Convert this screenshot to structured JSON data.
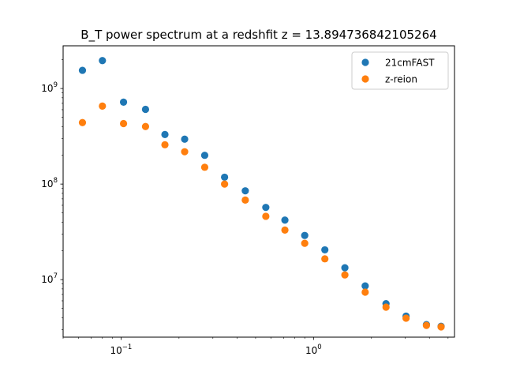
{
  "chart_data": {
    "type": "scatter",
    "title": "B_T power spectrum at a redshfit z = 13.894736842105264",
    "xlabel": "",
    "ylabel": "",
    "xscale": "log",
    "yscale": "log",
    "xlim": [
      0.05,
      5.4
    ],
    "ylim": [
      2500000,
      2800000000
    ],
    "x_major_ticks": [
      {
        "base": "10",
        "exp": "−1",
        "value": 0.1
      },
      {
        "base": "10",
        "exp": "0",
        "value": 1
      }
    ],
    "y_major_ticks": [
      {
        "base": "10",
        "exp": "7",
        "value": 10000000
      },
      {
        "base": "10",
        "exp": "8",
        "value": 100000000
      },
      {
        "base": "10",
        "exp": "9",
        "value": 1000000000
      }
    ],
    "legend_position": "top-right",
    "series": [
      {
        "name": "21cmFAST",
        "color": "#1f77b4",
        "x": [
          0.063,
          0.08,
          0.103,
          0.134,
          0.169,
          0.214,
          0.272,
          0.345,
          0.442,
          0.565,
          0.71,
          0.9,
          1.145,
          1.455,
          1.855,
          2.38,
          3.025,
          3.86,
          4.6
        ],
        "y": [
          1550000000,
          1960000000,
          720000000,
          605000000,
          330000000,
          295000000,
          200000000,
          118000000,
          85000000,
          57000000,
          42000000,
          29000000,
          20500000,
          13300000,
          8600000,
          5600000,
          4150000,
          3380000,
          3250000
        ]
      },
      {
        "name": "z-reion",
        "color": "#ff7f0e",
        "x": [
          0.063,
          0.08,
          0.103,
          0.134,
          0.169,
          0.214,
          0.272,
          0.345,
          0.442,
          0.565,
          0.71,
          0.9,
          1.145,
          1.455,
          1.855,
          2.38,
          3.025,
          3.86,
          4.6
        ],
        "y": [
          440000000,
          655000000,
          430000000,
          400000000,
          258000000,
          218000000,
          150000000,
          100000000,
          68000000,
          46000000,
          33000000,
          24000000,
          16500000,
          11200000,
          7400000,
          5150000,
          3950000,
          3320000,
          3200000
        ]
      }
    ]
  }
}
